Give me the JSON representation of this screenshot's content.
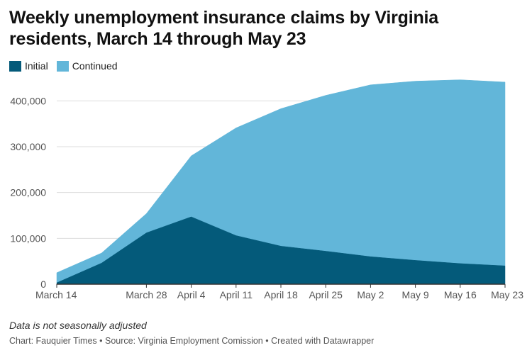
{
  "title": "Weekly unemployment insurance claims by Virginia residents, March 14 through May 23",
  "legend": {
    "initial": "Initial",
    "continued": "Continued"
  },
  "colors": {
    "initial": "#045a7a",
    "continued": "#62b6d9",
    "grid": "#dcdcdc",
    "axis": "#333333"
  },
  "note": "Data is not seasonally adjusted",
  "footer": "Chart: Fauquier Times • Source: Virginia Employment Comission • Created with Datawrapper",
  "chart_data": {
    "type": "area",
    "stacked": true,
    "x": [
      "March 14",
      "March 21",
      "March 28",
      "April 4",
      "April 11",
      "April 18",
      "April 25",
      "May 2",
      "May 9",
      "May 16",
      "May 23"
    ],
    "x_tick_labels": [
      "March 14",
      "",
      "March 28",
      "April 4",
      "April 11",
      "April 18",
      "April 25",
      "May 2",
      "May 9",
      "May 16",
      "May 23"
    ],
    "series": [
      {
        "name": "Initial",
        "values": [
          3000,
          46000,
          112000,
          147000,
          106000,
          83000,
          72000,
          60000,
          52000,
          45000,
          40000
        ]
      },
      {
        "name": "Continued",
        "values": [
          22000,
          22000,
          42000,
          133000,
          235000,
          300000,
          340000,
          375000,
          391000,
          401000,
          401000
        ]
      }
    ],
    "y_ticks": [
      0,
      100000,
      200000,
      300000,
      400000
    ],
    "y_tick_labels": [
      "0",
      "100,000",
      "200,000",
      "300,000",
      "400,000"
    ],
    "ylim": [
      0,
      450000
    ],
    "grid": true,
    "legend_position": "top-left"
  }
}
